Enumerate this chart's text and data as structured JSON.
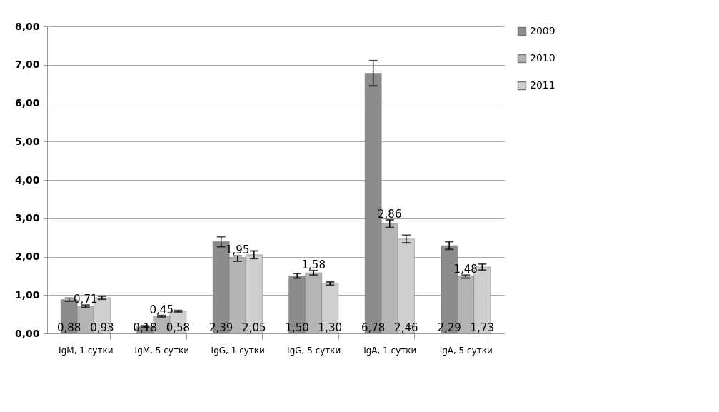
{
  "chart_data": {
    "type": "bar",
    "categories": [
      "IgM, 1 сутки",
      "IgM, 5 сутки",
      "IgG, 1 сутки",
      "IgG, 5 сутки",
      "IgA, 1 сутки",
      "IgA, 5 сутки"
    ],
    "series": [
      {
        "name": "2009",
        "color": "#8c8c8c",
        "values": [
          0.88,
          0.18,
          2.39,
          1.5,
          6.78,
          2.29
        ],
        "errors": [
          0.04,
          0.02,
          0.13,
          0.06,
          0.33,
          0.1
        ],
        "value_labels": [
          "0,88",
          "0,18",
          "2,39",
          "1,50",
          "6,78",
          "2,29"
        ]
      },
      {
        "name": "2010",
        "color": "#b4b4b4",
        "values": [
          0.71,
          0.45,
          1.95,
          1.58,
          2.86,
          1.48
        ],
        "errors": [
          0.03,
          0.02,
          0.07,
          0.06,
          0.1,
          0.04
        ],
        "value_labels": [
          "0,71",
          "0,45",
          "1,95",
          "1,58",
          "2,86",
          "1,48"
        ]
      },
      {
        "name": "2011",
        "color": "#cfcfcf",
        "values": [
          0.93,
          0.58,
          2.05,
          1.3,
          2.46,
          1.73
        ],
        "errors": [
          0.04,
          0.02,
          0.1,
          0.04,
          0.1,
          0.08
        ],
        "value_labels": [
          "0,93",
          "0,58",
          "2,05",
          "1,30",
          "2,46",
          "1,73"
        ]
      }
    ],
    "ylim": [
      0,
      8
    ],
    "yticks": [
      {
        "value": 0,
        "label": "0,00"
      },
      {
        "value": 1,
        "label": "1,00"
      },
      {
        "value": 2,
        "label": "2,00"
      },
      {
        "value": 3,
        "label": "3,00"
      },
      {
        "value": 4,
        "label": "4,00"
      },
      {
        "value": 5,
        "label": "5,00"
      },
      {
        "value": 6,
        "label": "6,00"
      },
      {
        "value": 7,
        "label": "7,00"
      },
      {
        "value": 8,
        "label": "8,00"
      }
    ],
    "grid": "y",
    "legend": "right"
  }
}
